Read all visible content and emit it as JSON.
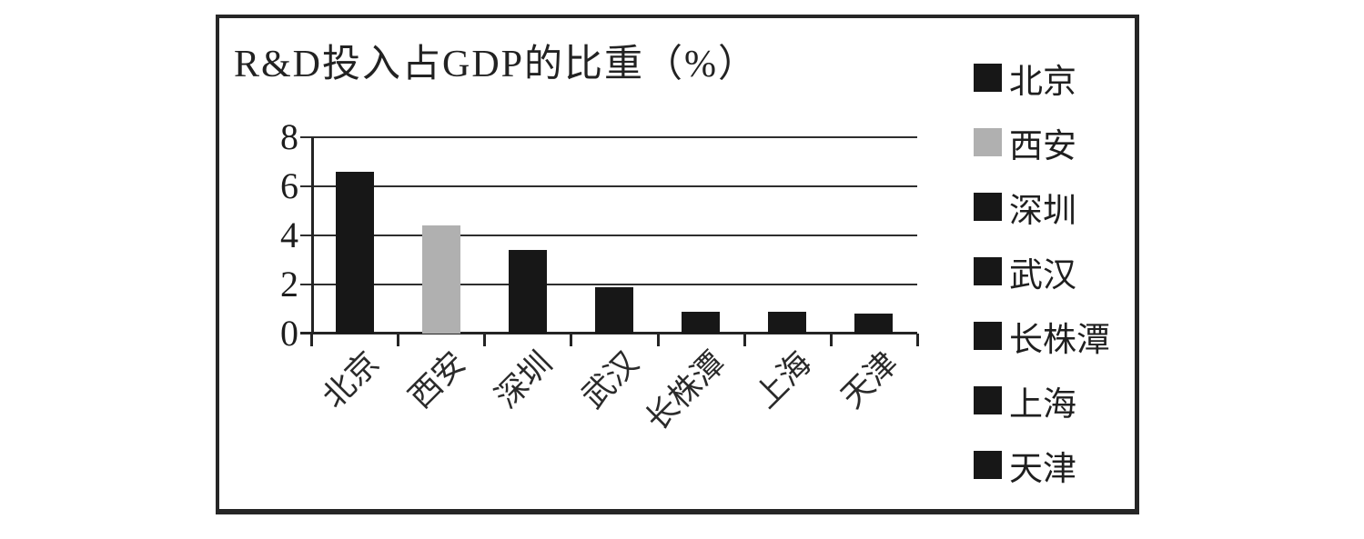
{
  "chart_data": {
    "type": "bar",
    "title": "R&D投入占GDP的比重（%）",
    "categories": [
      "北京",
      "西安",
      "深圳",
      "武汉",
      "长株潭",
      "上海",
      "天津"
    ],
    "values": [
      6.6,
      4.4,
      3.4,
      1.9,
      0.9,
      0.9,
      0.8
    ],
    "bar_colors": [
      "#171717",
      "#b0b0b0",
      "#171717",
      "#171717",
      "#171717",
      "#171717",
      "#171717"
    ],
    "xlabel": "",
    "ylabel": "",
    "ylim": [
      0,
      8
    ],
    "y_ticks": [
      0,
      2,
      4,
      6,
      8
    ],
    "grid": true,
    "legend_position": "right",
    "legend": [
      {
        "label": "北京",
        "color": "#171717"
      },
      {
        "label": "西安",
        "color": "#b0b0b0"
      },
      {
        "label": "深圳",
        "color": "#171717"
      },
      {
        "label": "武汉",
        "color": "#171717"
      },
      {
        "label": "长株潭",
        "color": "#171717"
      },
      {
        "label": "上海",
        "color": "#171717"
      },
      {
        "label": "天津",
        "color": "#171717"
      }
    ]
  },
  "colors": {
    "frame_border": "#262626",
    "grid_line": "#2e2e2e",
    "axis_line": "#242424",
    "background": "#ffffff",
    "dark_bar": "#171717",
    "gray_bar": "#b0b0b0"
  }
}
